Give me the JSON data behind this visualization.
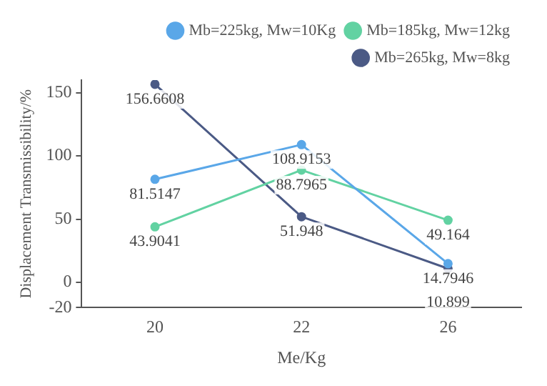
{
  "chart_data": {
    "type": "line",
    "xlabel": "Me/Kg",
    "ylabel": "Displacement Transmissibility/%",
    "categories": [
      "20",
      "22",
      "26"
    ],
    "series": [
      {
        "name": "Mb=225kg, Mw=10Kg",
        "color": "#5aa7e8",
        "values": [
          81.5147,
          108.9153,
          14.7946
        ]
      },
      {
        "name": "Mb=185kg, Mw=12kg",
        "color": "#62d2a2",
        "values": [
          43.9041,
          88.7965,
          49.164
        ]
      },
      {
        "name": "Mb=265kg, Mw=8kg",
        "color": "#4b5a85",
        "values": [
          156.6608,
          51.948,
          10.899
        ]
      }
    ],
    "ylim": [
      -20,
      160
    ],
    "yticks": [
      -20,
      0,
      50,
      100,
      150
    ],
    "grid": false,
    "legend": "top",
    "marker": "circle",
    "line_style": "solid",
    "data_labels": true
  }
}
